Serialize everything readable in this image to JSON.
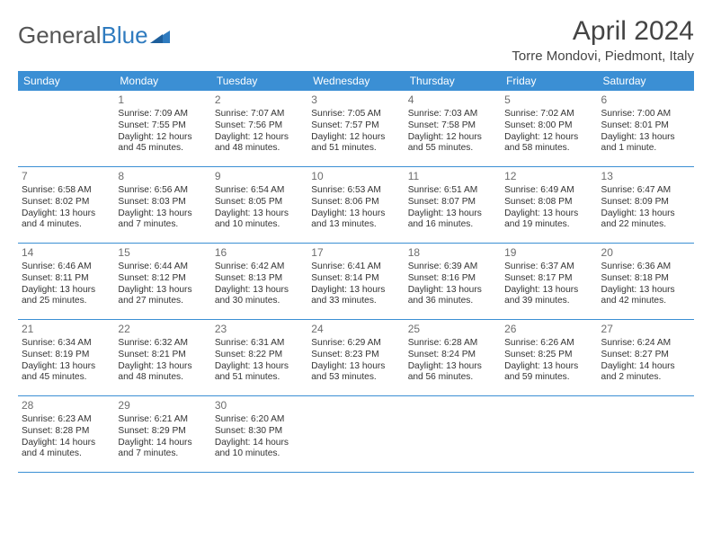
{
  "brand": {
    "part1": "General",
    "part2": "Blue"
  },
  "title": "April 2024",
  "location": "Torre Mondovi, Piedmont, Italy",
  "colors": {
    "header_bg": "#3b8fd4",
    "header_text": "#ffffff",
    "rule": "#3b8fd4",
    "daynum": "#6d6d6d",
    "body_text": "#333333",
    "logo_gray": "#555555",
    "logo_blue": "#2f7bbf"
  },
  "days_of_week": [
    "Sunday",
    "Monday",
    "Tuesday",
    "Wednesday",
    "Thursday",
    "Friday",
    "Saturday"
  ],
  "weeks": [
    [
      {
        "n": "",
        "sr": "",
        "ss": "",
        "dl": ""
      },
      {
        "n": "1",
        "sr": "Sunrise: 7:09 AM",
        "ss": "Sunset: 7:55 PM",
        "dl": "Daylight: 12 hours and 45 minutes."
      },
      {
        "n": "2",
        "sr": "Sunrise: 7:07 AM",
        "ss": "Sunset: 7:56 PM",
        "dl": "Daylight: 12 hours and 48 minutes."
      },
      {
        "n": "3",
        "sr": "Sunrise: 7:05 AM",
        "ss": "Sunset: 7:57 PM",
        "dl": "Daylight: 12 hours and 51 minutes."
      },
      {
        "n": "4",
        "sr": "Sunrise: 7:03 AM",
        "ss": "Sunset: 7:58 PM",
        "dl": "Daylight: 12 hours and 55 minutes."
      },
      {
        "n": "5",
        "sr": "Sunrise: 7:02 AM",
        "ss": "Sunset: 8:00 PM",
        "dl": "Daylight: 12 hours and 58 minutes."
      },
      {
        "n": "6",
        "sr": "Sunrise: 7:00 AM",
        "ss": "Sunset: 8:01 PM",
        "dl": "Daylight: 13 hours and 1 minute."
      }
    ],
    [
      {
        "n": "7",
        "sr": "Sunrise: 6:58 AM",
        "ss": "Sunset: 8:02 PM",
        "dl": "Daylight: 13 hours and 4 minutes."
      },
      {
        "n": "8",
        "sr": "Sunrise: 6:56 AM",
        "ss": "Sunset: 8:03 PM",
        "dl": "Daylight: 13 hours and 7 minutes."
      },
      {
        "n": "9",
        "sr": "Sunrise: 6:54 AM",
        "ss": "Sunset: 8:05 PM",
        "dl": "Daylight: 13 hours and 10 minutes."
      },
      {
        "n": "10",
        "sr": "Sunrise: 6:53 AM",
        "ss": "Sunset: 8:06 PM",
        "dl": "Daylight: 13 hours and 13 minutes."
      },
      {
        "n": "11",
        "sr": "Sunrise: 6:51 AM",
        "ss": "Sunset: 8:07 PM",
        "dl": "Daylight: 13 hours and 16 minutes."
      },
      {
        "n": "12",
        "sr": "Sunrise: 6:49 AM",
        "ss": "Sunset: 8:08 PM",
        "dl": "Daylight: 13 hours and 19 minutes."
      },
      {
        "n": "13",
        "sr": "Sunrise: 6:47 AM",
        "ss": "Sunset: 8:09 PM",
        "dl": "Daylight: 13 hours and 22 minutes."
      }
    ],
    [
      {
        "n": "14",
        "sr": "Sunrise: 6:46 AM",
        "ss": "Sunset: 8:11 PM",
        "dl": "Daylight: 13 hours and 25 minutes."
      },
      {
        "n": "15",
        "sr": "Sunrise: 6:44 AM",
        "ss": "Sunset: 8:12 PM",
        "dl": "Daylight: 13 hours and 27 minutes."
      },
      {
        "n": "16",
        "sr": "Sunrise: 6:42 AM",
        "ss": "Sunset: 8:13 PM",
        "dl": "Daylight: 13 hours and 30 minutes."
      },
      {
        "n": "17",
        "sr": "Sunrise: 6:41 AM",
        "ss": "Sunset: 8:14 PM",
        "dl": "Daylight: 13 hours and 33 minutes."
      },
      {
        "n": "18",
        "sr": "Sunrise: 6:39 AM",
        "ss": "Sunset: 8:16 PM",
        "dl": "Daylight: 13 hours and 36 minutes."
      },
      {
        "n": "19",
        "sr": "Sunrise: 6:37 AM",
        "ss": "Sunset: 8:17 PM",
        "dl": "Daylight: 13 hours and 39 minutes."
      },
      {
        "n": "20",
        "sr": "Sunrise: 6:36 AM",
        "ss": "Sunset: 8:18 PM",
        "dl": "Daylight: 13 hours and 42 minutes."
      }
    ],
    [
      {
        "n": "21",
        "sr": "Sunrise: 6:34 AM",
        "ss": "Sunset: 8:19 PM",
        "dl": "Daylight: 13 hours and 45 minutes."
      },
      {
        "n": "22",
        "sr": "Sunrise: 6:32 AM",
        "ss": "Sunset: 8:21 PM",
        "dl": "Daylight: 13 hours and 48 minutes."
      },
      {
        "n": "23",
        "sr": "Sunrise: 6:31 AM",
        "ss": "Sunset: 8:22 PM",
        "dl": "Daylight: 13 hours and 51 minutes."
      },
      {
        "n": "24",
        "sr": "Sunrise: 6:29 AM",
        "ss": "Sunset: 8:23 PM",
        "dl": "Daylight: 13 hours and 53 minutes."
      },
      {
        "n": "25",
        "sr": "Sunrise: 6:28 AM",
        "ss": "Sunset: 8:24 PM",
        "dl": "Daylight: 13 hours and 56 minutes."
      },
      {
        "n": "26",
        "sr": "Sunrise: 6:26 AM",
        "ss": "Sunset: 8:25 PM",
        "dl": "Daylight: 13 hours and 59 minutes."
      },
      {
        "n": "27",
        "sr": "Sunrise: 6:24 AM",
        "ss": "Sunset: 8:27 PM",
        "dl": "Daylight: 14 hours and 2 minutes."
      }
    ],
    [
      {
        "n": "28",
        "sr": "Sunrise: 6:23 AM",
        "ss": "Sunset: 8:28 PM",
        "dl": "Daylight: 14 hours and 4 minutes."
      },
      {
        "n": "29",
        "sr": "Sunrise: 6:21 AM",
        "ss": "Sunset: 8:29 PM",
        "dl": "Daylight: 14 hours and 7 minutes."
      },
      {
        "n": "30",
        "sr": "Sunrise: 6:20 AM",
        "ss": "Sunset: 8:30 PM",
        "dl": "Daylight: 14 hours and 10 minutes."
      },
      {
        "n": "",
        "sr": "",
        "ss": "",
        "dl": ""
      },
      {
        "n": "",
        "sr": "",
        "ss": "",
        "dl": ""
      },
      {
        "n": "",
        "sr": "",
        "ss": "",
        "dl": ""
      },
      {
        "n": "",
        "sr": "",
        "ss": "",
        "dl": ""
      }
    ]
  ]
}
